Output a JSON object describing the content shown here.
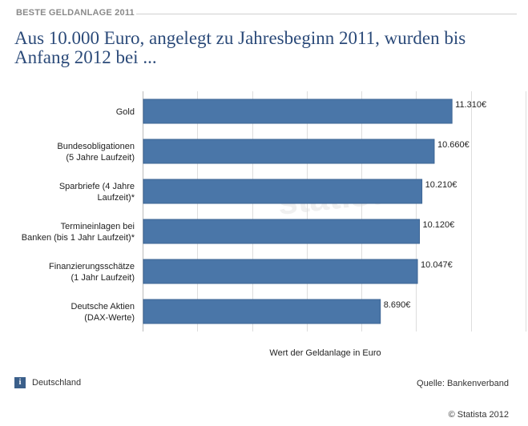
{
  "header": {
    "label": "BESTE GELDANLAGE 2011",
    "title": "Aus 10.000 Euro, angelegt zu Jahresbeginn 2011, wurden bis Anfang 2012 bei ..."
  },
  "footer": {
    "region": "Deutschland",
    "info_icon": "info-icon",
    "source": "Quelle: Bankenverband",
    "copyright": "© Statista 2012"
  },
  "watermark": "statista",
  "colors": {
    "bar": "#4a76a8",
    "title": "#2b4a79",
    "grid": "#dddddd"
  },
  "chart_data": {
    "type": "bar",
    "orientation": "horizontal",
    "categories": [
      [
        "Gold"
      ],
      [
        "Bundesobligationen",
        "(5 Jahre Laufzeit)"
      ],
      [
        "Sparbriefe (4 Jahre",
        "Laufzeit)*"
      ],
      [
        "Termineinlagen bei",
        "Banken (bis 1 Jahr Laufzeit)*"
      ],
      [
        "Finanzierungsschätze",
        "(1 Jahr Laufzeit)"
      ],
      [
        "Deutsche Aktien",
        "(DAX-Werte)"
      ]
    ],
    "values": [
      11310,
      10660,
      10210,
      10120,
      10047,
      8690
    ],
    "value_labels": [
      "11.310€",
      "10.660€",
      "10.210€",
      "10.120€",
      "10.047€",
      "8.690€"
    ],
    "xlabel": "Wert der Geldanlage in Euro",
    "xlim": [
      0,
      14000
    ],
    "grid": true
  }
}
